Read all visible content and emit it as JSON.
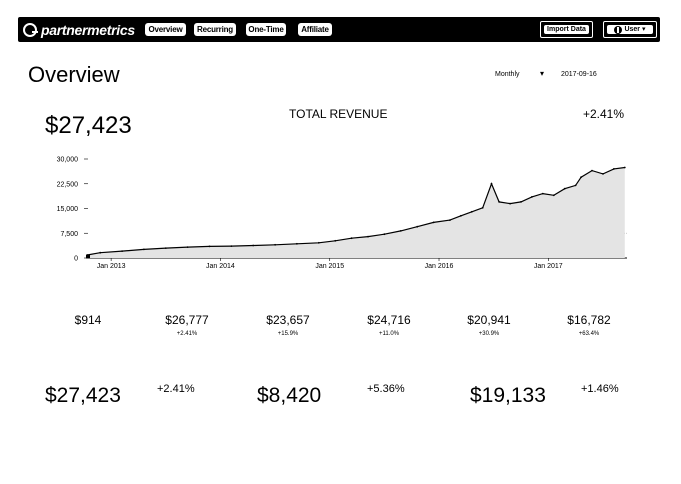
{
  "nav": {
    "logo_text": "partnermetrics",
    "tabs": [
      {
        "label": "Overview"
      },
      {
        "label": "Recurring"
      },
      {
        "label": "One-Time"
      },
      {
        "label": "Affiliate"
      }
    ],
    "report_label": "Import Data",
    "user_label": "User"
  },
  "header": {
    "title": "Overview",
    "period": "Monthly",
    "period_caret": "▾",
    "date": "2017-09-16"
  },
  "summary": {
    "total": "$27,423",
    "chart_title": "TOTAL REVENUE",
    "change": "+2.41%"
  },
  "chart_data": {
    "type": "line",
    "title": "TOTAL REVENUE",
    "xlabel": "",
    "ylabel": "",
    "y_ticks": [
      "30,000",
      "22,500",
      "15,000",
      "7,500",
      "0"
    ],
    "y_tick_values": [
      30000,
      22500,
      15000,
      7500,
      0
    ],
    "x_ticks": [
      "Jan 2013",
      "Jan 2014",
      "Jan 2015",
      "Jan 2016",
      "Jan 2017"
    ],
    "x_tick_values": [
      2013.0,
      2014.0,
      2015.0,
      2016.0,
      2017.0
    ],
    "ylim": [
      0,
      30000
    ],
    "xlim": [
      2012.77,
      2017.72
    ],
    "reference_line": 7500,
    "grid": false,
    "series": [
      {
        "x": [
          2012.78,
          2012.9,
          2013.1,
          2013.3,
          2013.5,
          2013.7,
          2013.9,
          2014.1,
          2014.3,
          2014.5,
          2014.7,
          2014.9,
          2015.05,
          2015.2,
          2015.35,
          2015.5,
          2015.65,
          2015.8,
          2015.95,
          2016.1,
          2016.2,
          2016.3,
          2016.4,
          2016.48,
          2016.55,
          2016.65,
          2016.75,
          2016.85,
          2016.95,
          2017.05,
          2017.15,
          2017.25,
          2017.3,
          2017.4,
          2017.5,
          2017.6,
          2017.7
        ],
        "values": [
          900,
          1600,
          2100,
          2600,
          3000,
          3300,
          3500,
          3600,
          3800,
          4000,
          4300,
          4600,
          5200,
          6000,
          6500,
          7200,
          8200,
          9500,
          10800,
          11500,
          12800,
          14000,
          15200,
          22500,
          17000,
          16500,
          17000,
          18500,
          19500,
          19000,
          21000,
          22000,
          24500,
          26500,
          25500,
          27000,
          27423
        ]
      }
    ]
  },
  "stats": [
    {
      "value": "$914",
      "change": ""
    },
    {
      "value": "$26,777",
      "change": "+2.41%"
    },
    {
      "value": "$23,657",
      "change": "+15.9%"
    },
    {
      "value": "$24,716",
      "change": "+11.0%"
    },
    {
      "value": "$20,941",
      "change": "+30.9%"
    },
    {
      "value": "$16,782",
      "change": "+63.4%"
    }
  ],
  "bottom": [
    {
      "value": "$27,423",
      "change": "+2.41%"
    },
    {
      "value": "$8,420",
      "change": "+5.36%"
    },
    {
      "value": "$19,133",
      "change": "+1.46%"
    }
  ]
}
